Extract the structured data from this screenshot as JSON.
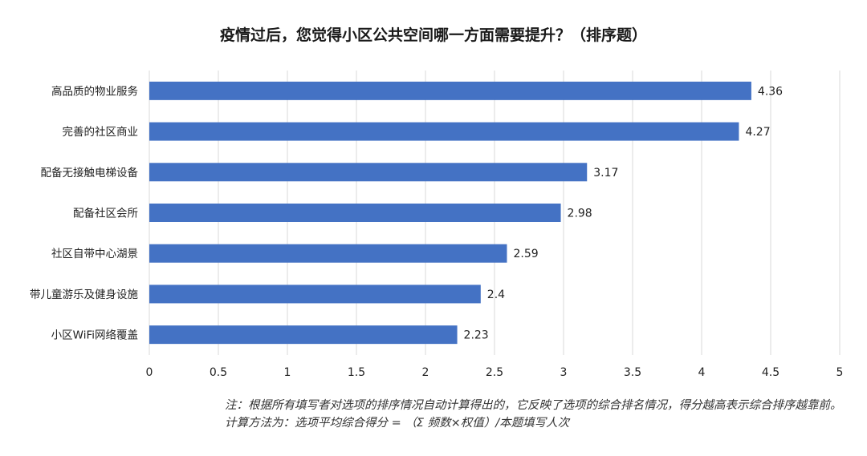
{
  "chart_data": {
    "type": "bar",
    "orientation": "horizontal",
    "title": "疫情过后，您觉得小区公共空间哪一方面需要提升？（排序题）",
    "categories": [
      "高品质的物业服务",
      "完善的社区商业",
      "配备无接触电梯设备",
      "配备社区会所",
      "社区自带中心湖景",
      "带儿童游乐及健身设施",
      "小区WiFi网络覆盖"
    ],
    "values": [
      4.36,
      4.27,
      3.17,
      2.98,
      2.59,
      2.4,
      2.23
    ],
    "value_labels": [
      "4.36",
      "4.27",
      "3.17",
      "2.98",
      "2.59",
      "2.4",
      "2.23"
    ],
    "xlim": [
      0,
      5
    ],
    "xticks": [
      0,
      0.5,
      1,
      1.5,
      2,
      2.5,
      3,
      3.5,
      4,
      4.5,
      5
    ],
    "xtick_labels": [
      "0",
      "0.5",
      "1",
      "1.5",
      "2",
      "2.5",
      "3",
      "3.5",
      "4",
      "4.5",
      "5"
    ],
    "grid": "vertical",
    "bar_color": "#4472c4",
    "legend": "none"
  },
  "note": {
    "text": "注：根据所有填写者对选项的排序情况自动计算得出的，它反映了选项的综合排名情况，得分越高表示综合排序越靠前。计算方法为：选项平均综合得分 = （Σ 频数×权值）/本题填写人次"
  }
}
